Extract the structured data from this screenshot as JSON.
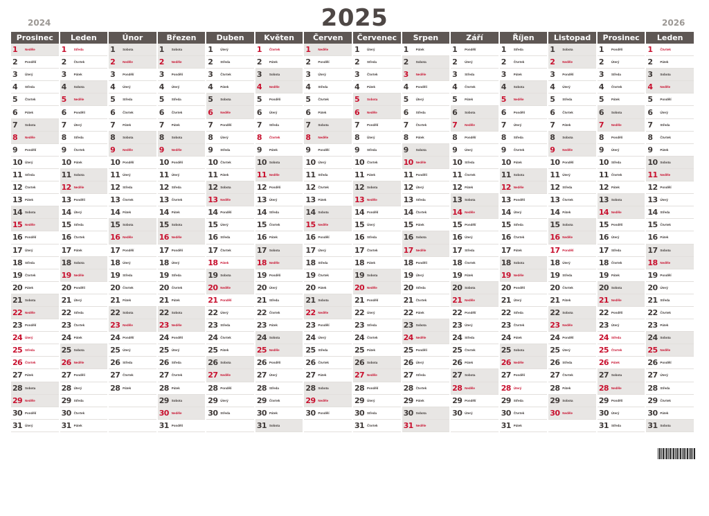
{
  "calendar": {
    "year": "2025",
    "prev_year": "2024",
    "next_year": "2026",
    "weekday_names": [
      "Pondělí",
      "Úterý",
      "Středa",
      "Čtvrtek",
      "Pátek",
      "Sobota",
      "Neděle"
    ],
    "months": [
      {
        "name": "Prosinec",
        "days": 31,
        "first_weekday": 6,
        "holidays": [
          24,
          25,
          26
        ]
      },
      {
        "name": "Leden",
        "days": 31,
        "first_weekday": 2,
        "holidays": [
          1
        ]
      },
      {
        "name": "Únor",
        "days": 28,
        "first_weekday": 5,
        "holidays": []
      },
      {
        "name": "Březen",
        "days": 31,
        "first_weekday": 5,
        "holidays": []
      },
      {
        "name": "Duben",
        "days": 30,
        "first_weekday": 1,
        "holidays": [
          18,
          21
        ]
      },
      {
        "name": "Květen",
        "days": 31,
        "first_weekday": 3,
        "holidays": [
          1,
          8
        ]
      },
      {
        "name": "Červen",
        "days": 30,
        "first_weekday": 6,
        "holidays": []
      },
      {
        "name": "Červenec",
        "days": 31,
        "first_weekday": 1,
        "holidays": [
          5,
          6
        ]
      },
      {
        "name": "Srpen",
        "days": 31,
        "first_weekday": 4,
        "holidays": []
      },
      {
        "name": "Září",
        "days": 30,
        "first_weekday": 0,
        "holidays": [
          28
        ]
      },
      {
        "name": "Říjen",
        "days": 31,
        "first_weekday": 2,
        "holidays": [
          28
        ]
      },
      {
        "name": "Listopad",
        "days": 30,
        "first_weekday": 5,
        "holidays": [
          17
        ]
      },
      {
        "name": "Prosinec",
        "days": 31,
        "first_weekday": 0,
        "holidays": [
          24,
          25,
          26
        ]
      },
      {
        "name": "Leden",
        "days": 31,
        "first_weekday": 3,
        "holidays": [
          1
        ]
      }
    ]
  },
  "colors": {
    "header": "#5e5754",
    "holiday": "#c8102e",
    "weekend": "#e8e6e4"
  }
}
